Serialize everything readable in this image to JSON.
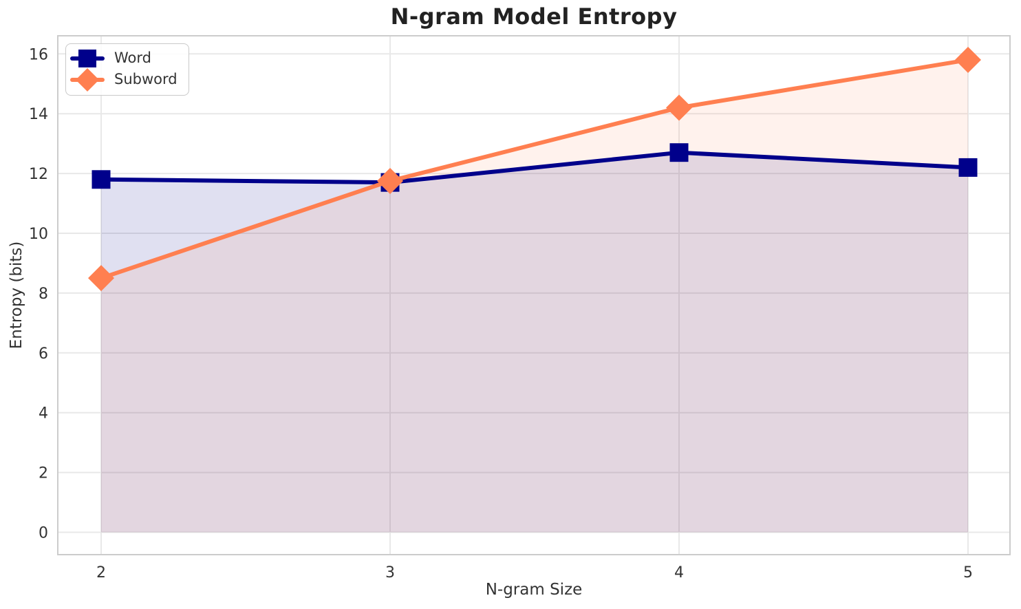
{
  "chart_data": {
    "type": "line",
    "title": "N-gram Model Entropy",
    "xlabel": "N-gram Size",
    "ylabel": "Entropy (bits)",
    "x": [
      2,
      3,
      4,
      5
    ],
    "series": [
      {
        "name": "Word",
        "color": "#00008B",
        "marker": "square",
        "values": [
          11.8,
          11.7,
          12.7,
          12.2
        ],
        "fill_opacity": 0.12
      },
      {
        "name": "Subword",
        "color": "#FF7F50",
        "marker": "diamond",
        "values": [
          8.5,
          11.75,
          14.2,
          15.8
        ],
        "fill_opacity": 0.1
      }
    ],
    "xticks": [
      2,
      3,
      4,
      5
    ],
    "yticks": [
      0,
      2,
      4,
      6,
      8,
      10,
      12,
      14,
      16
    ],
    "xlim": [
      1.85,
      5.15
    ],
    "ylim": [
      -0.75,
      16.65
    ],
    "fill_baseline": 0,
    "grid": true,
    "grid_color": "#e8e8e8",
    "spine_color": "#cccccc",
    "legend_position": "upper left"
  }
}
